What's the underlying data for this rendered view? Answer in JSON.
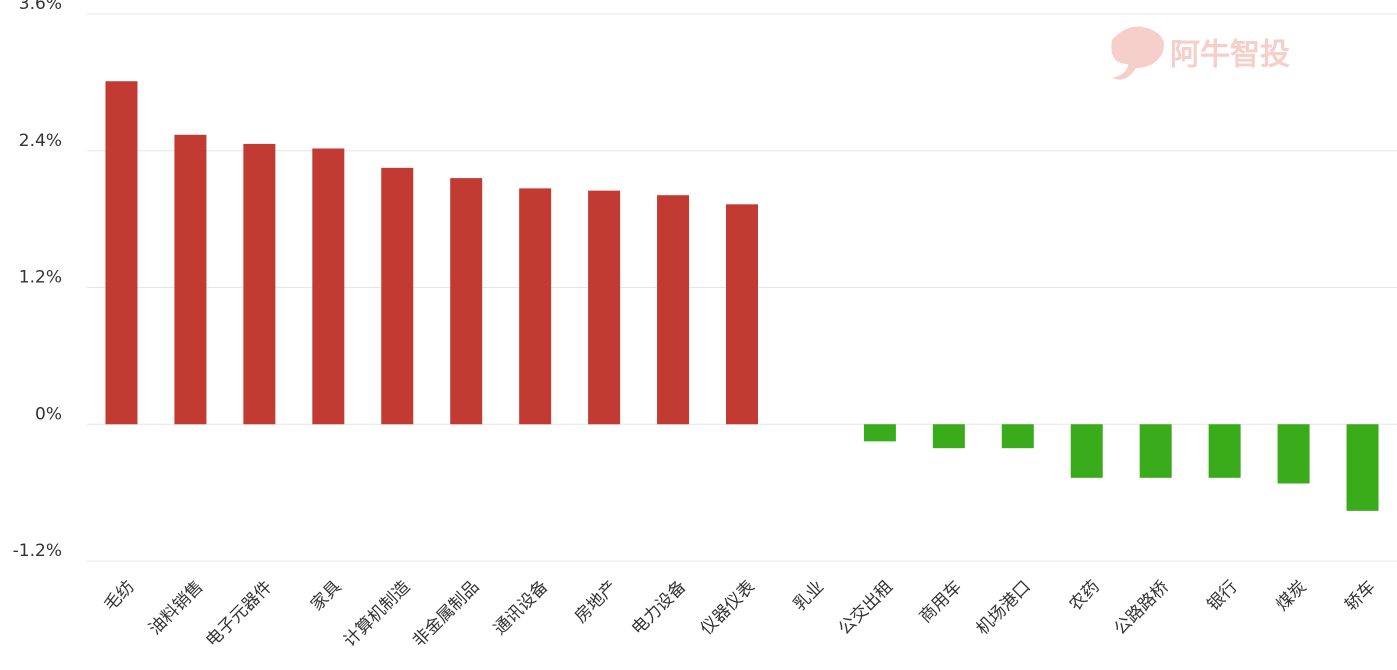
{
  "chart_data": {
    "type": "bar",
    "watermark": "阿牛智投",
    "categories": [
      "毛纺",
      "油料销售",
      "电子元器件",
      "家具",
      "计算机制造",
      "非金属制品",
      "通讯设备",
      "房地产",
      "电力设备",
      "仪器仪表",
      "乳业",
      "公交出租",
      "商用车",
      "机场港口",
      "农药",
      "公路路桥",
      "银行",
      "煤炭",
      "轿车"
    ],
    "values": [
      3.01,
      2.54,
      2.46,
      2.42,
      2.25,
      2.16,
      2.07,
      2.05,
      2.01,
      1.93,
      0,
      -0.15,
      -0.21,
      -0.21,
      -0.47,
      -0.47,
      -0.47,
      -0.52,
      -0.76
    ],
    "positive_color": "#c23b33",
    "negative_color": "#3aab1a",
    "ylim": [
      -1.2,
      3.6
    ],
    "yticks": [
      {
        "value": -1.2,
        "label": "-1.2%"
      },
      {
        "value": 0,
        "label": "0%"
      },
      {
        "value": 1.2,
        "label": "1.2%"
      },
      {
        "value": 2.4,
        "label": "2.4%"
      },
      {
        "value": 3.6,
        "label": "3.6%"
      }
    ],
    "grid": true
  }
}
